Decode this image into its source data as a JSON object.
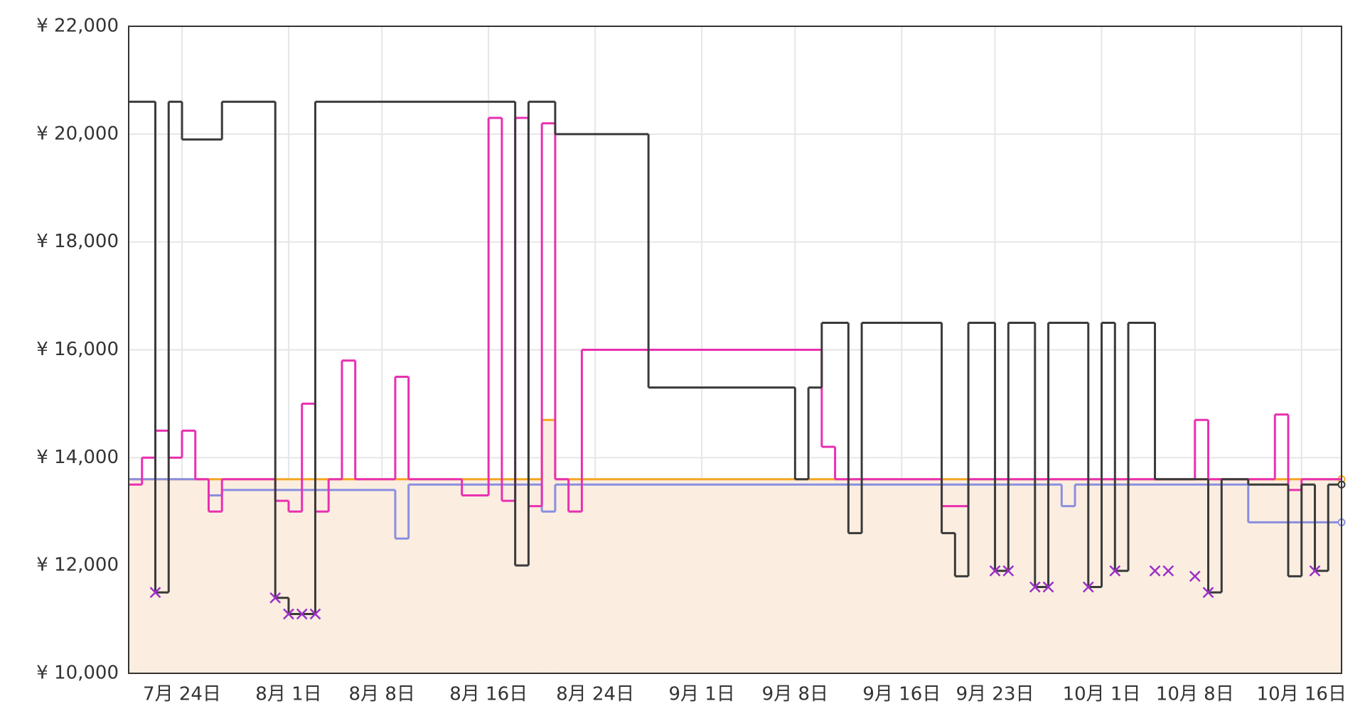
{
  "chart_data": {
    "type": "line",
    "step": "after",
    "grid": true,
    "xlim": [
      "07-20",
      "10-19"
    ],
    "xticks": [
      {
        "value": "07-24",
        "label": "7月 24日"
      },
      {
        "value": "08-01",
        "label": "8月 1日"
      },
      {
        "value": "08-08",
        "label": "8月 8日"
      },
      {
        "value": "08-16",
        "label": "8月 16日"
      },
      {
        "value": "08-24",
        "label": "8月 24日"
      },
      {
        "value": "09-01",
        "label": "9月 1日"
      },
      {
        "value": "09-08",
        "label": "9月 8日"
      },
      {
        "value": "09-16",
        "label": "9月 16日"
      },
      {
        "value": "09-23",
        "label": "9月 23日"
      },
      {
        "value": "10-01",
        "label": "10月 1日"
      },
      {
        "value": "10-08",
        "label": "10月 8日"
      },
      {
        "value": "10-16",
        "label": "10月 16日"
      }
    ],
    "ylim": [
      10000,
      22000
    ],
    "yticks": [
      {
        "value": 10000,
        "label": "¥ 10,000"
      },
      {
        "value": 12000,
        "label": "¥ 12,000"
      },
      {
        "value": 14000,
        "label": "¥ 14,000"
      },
      {
        "value": 16000,
        "label": "¥ 16,000"
      },
      {
        "value": 18000,
        "label": "¥ 18,000"
      },
      {
        "value": 20000,
        "label": "¥ 20,000"
      },
      {
        "value": 22000,
        "label": "¥ 22,000"
      }
    ],
    "series": [
      {
        "color": "#f5a623",
        "fill": "#fbeee0",
        "end_marker": true,
        "x": [
          "07-20",
          "08-20",
          "08-21",
          "10-19"
        ],
        "values": [
          13600,
          14700,
          13600,
          13600
        ]
      },
      {
        "color": "#8a8ee0",
        "end_marker": true,
        "x": [
          "07-20",
          "07-26",
          "07-27",
          "08-09",
          "08-10",
          "08-20",
          "08-21",
          "09-28",
          "09-29",
          "10-12",
          "10-19"
        ],
        "values": [
          13600,
          13300,
          13400,
          12500,
          13500,
          13000,
          13500,
          13100,
          13500,
          12800,
          12800
        ]
      },
      {
        "color": "#e830b0",
        "x": [
          "07-20",
          "07-21",
          "07-22",
          "07-23",
          "07-24",
          "07-25",
          "07-26",
          "07-27",
          "07-31",
          "08-01",
          "08-02",
          "08-03",
          "08-04",
          "08-05",
          "08-06",
          "08-09",
          "08-10",
          "08-14",
          "08-16",
          "08-17",
          "08-18",
          "08-19",
          "08-20",
          "08-21",
          "08-22",
          "08-23",
          "09-10",
          "09-11",
          "09-19",
          "09-21",
          "10-08",
          "10-09",
          "10-14",
          "10-15",
          "10-16",
          "10-19"
        ],
        "values": [
          13500,
          14000,
          14500,
          14000,
          14500,
          13600,
          13000,
          13600,
          13200,
          13000,
          15000,
          13000,
          13600,
          15800,
          13600,
          15500,
          13600,
          13300,
          20300,
          13200,
          20300,
          13100,
          20200,
          13600,
          13000,
          16000,
          14200,
          13600,
          13100,
          13600,
          14700,
          13600,
          14800,
          13400,
          13600,
          13600
        ]
      },
      {
        "color": "#3a3a3a",
        "end_marker": true,
        "x": [
          "07-20",
          "07-22",
          "07-23",
          "07-24",
          "07-27",
          "07-31",
          "08-01",
          "08-03",
          "08-18",
          "08-19",
          "08-21",
          "08-28",
          "09-08",
          "09-09",
          "09-10",
          "09-12",
          "09-13",
          "09-19",
          "09-20",
          "09-21",
          "09-23",
          "09-24",
          "09-26",
          "09-27",
          "09-30",
          "10-01",
          "10-02",
          "10-03",
          "10-05",
          "10-09",
          "10-10",
          "10-12",
          "10-15",
          "10-16",
          "10-17",
          "10-18",
          "10-19"
        ],
        "values": [
          20600,
          11500,
          20600,
          19900,
          20600,
          11400,
          11100,
          20600,
          12000,
          20600,
          20000,
          15300,
          13600,
          15300,
          16500,
          12600,
          16500,
          12600,
          11800,
          16500,
          11900,
          16500,
          11600,
          16500,
          11600,
          16500,
          11900,
          16500,
          13600,
          11500,
          13600,
          13500,
          11800,
          13500,
          11900,
          13500,
          13500
        ]
      },
      {
        "color": "#9b30c8",
        "marker": "x",
        "x": [
          "07-22",
          "07-31",
          "08-01",
          "08-02",
          "08-03",
          "09-23",
          "09-24",
          "09-26",
          "09-27",
          "09-30",
          "10-02",
          "10-05",
          "10-06",
          "10-08",
          "10-09",
          "10-17"
        ],
        "values": [
          11500,
          11400,
          11100,
          11100,
          11100,
          11900,
          11900,
          11600,
          11600,
          11600,
          11900,
          11900,
          11900,
          11800,
          11500,
          11900
        ]
      }
    ]
  }
}
